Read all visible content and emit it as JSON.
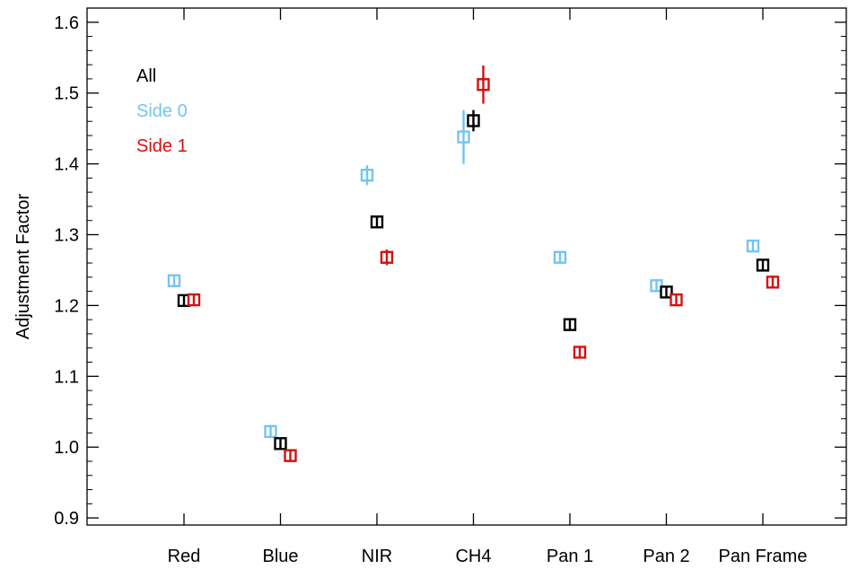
{
  "chart_data": {
    "type": "scatter",
    "title": "",
    "xlabel": "",
    "ylabel": "Adjustment Factor",
    "categories": [
      "Red",
      "Blue",
      "NIR",
      "CH4",
      "Pan 1",
      "Pan 2",
      "Pan Frame"
    ],
    "ylim": [
      0.89,
      1.62
    ],
    "yticks": [
      "0.9",
      "1.0",
      "1.1",
      "1.2",
      "1.3",
      "1.4",
      "1.5",
      "1.6"
    ],
    "grid": false,
    "legend": "top-left",
    "series": [
      {
        "name": "All",
        "color": "#000000",
        "values": [
          1.207,
          1.005,
          1.318,
          1.461,
          1.173,
          1.219,
          1.257
        ],
        "errors": [
          0.003,
          0.004,
          0.008,
          0.015,
          0.005,
          0.005,
          0.004
        ]
      },
      {
        "name": "Side 0",
        "color": "#74c4f2",
        "values": [
          1.235,
          1.022,
          1.384,
          1.438,
          1.268,
          1.228,
          1.284
        ],
        "errors": [
          0.006,
          0.006,
          0.014,
          0.038,
          0.008,
          0.006,
          0.008
        ]
      },
      {
        "name": "Side 1",
        "color": "#d70f0f",
        "values": [
          1.208,
          0.988,
          1.268,
          1.512,
          1.134,
          1.208,
          1.233
        ],
        "errors": [
          0.004,
          0.004,
          0.011,
          0.027,
          0.004,
          0.004,
          0.005
        ]
      }
    ]
  }
}
